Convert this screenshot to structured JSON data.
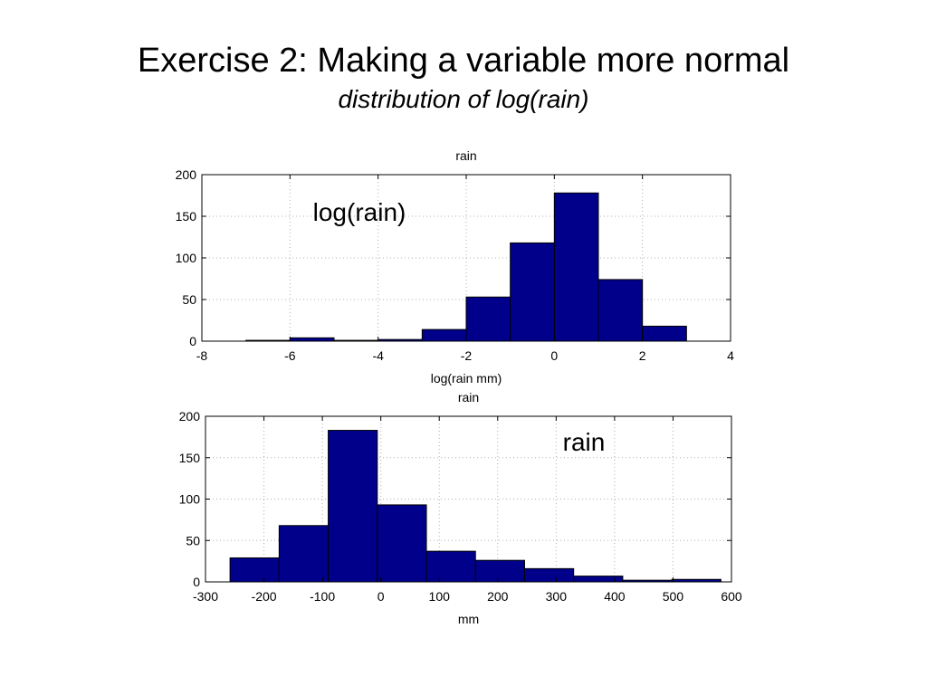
{
  "slide": {
    "title": "Exercise 2: Making a variable more normal",
    "subtitle": "distribution of log(rain)"
  },
  "colors": {
    "bar_fill": "#00008b",
    "bar_stroke": "#000000",
    "grid": "#b0b0b0",
    "axes": "#000000"
  },
  "chart_data": [
    {
      "type": "bar",
      "title": "rain",
      "xlabel": "log(rain mm)",
      "ylabel": "",
      "annotation": "log(rain)",
      "xlim": [
        -8,
        4
      ],
      "ylim": [
        0,
        200
      ],
      "xticks": [
        -8,
        -6,
        -4,
        -2,
        0,
        2,
        4
      ],
      "yticks": [
        0,
        50,
        100,
        150,
        200
      ],
      "grid": true,
      "bin_edges": [
        -7,
        -6,
        -5,
        -4,
        -3,
        -2,
        -1,
        0,
        1,
        2,
        3
      ],
      "values": [
        1,
        4,
        1,
        2,
        14,
        53,
        118,
        178,
        74,
        18
      ]
    },
    {
      "type": "bar",
      "title": "rain",
      "xlabel": "mm",
      "ylabel": "",
      "annotation": "rain",
      "xlim": [
        -300,
        600
      ],
      "ylim": [
        0,
        200
      ],
      "xticks": [
        -300,
        -200,
        -100,
        0,
        100,
        200,
        300,
        400,
        500,
        600
      ],
      "yticks": [
        0,
        50,
        100,
        150,
        200
      ],
      "grid": true,
      "bin_edges": [
        -258,
        -174,
        -90,
        -6,
        78,
        162,
        246,
        330,
        414,
        498,
        582
      ],
      "values": [
        29,
        68,
        183,
        93,
        37,
        26,
        16,
        7,
        2,
        3
      ]
    }
  ]
}
